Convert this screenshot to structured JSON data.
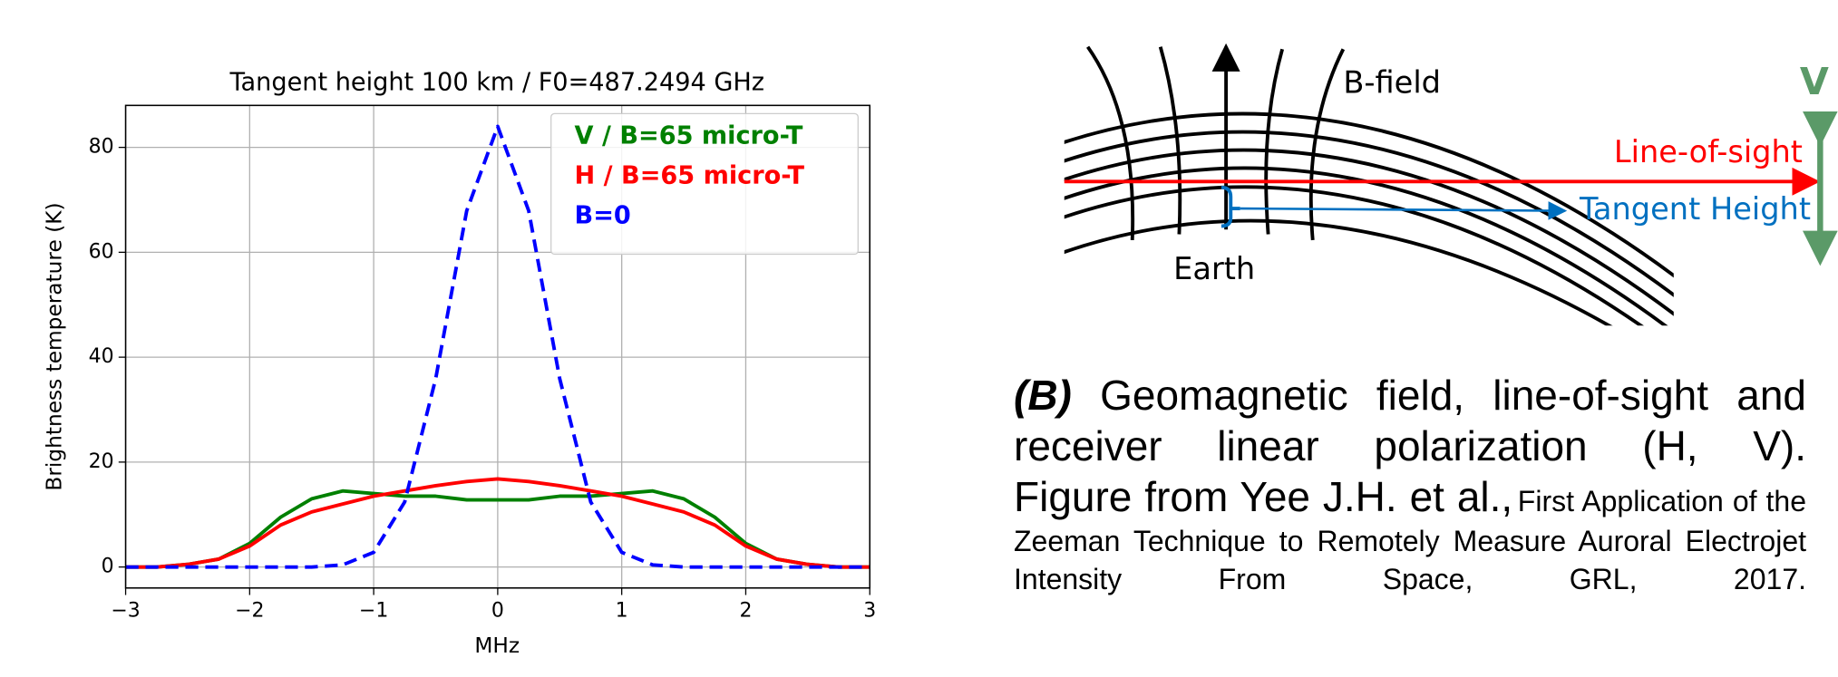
{
  "chart_data": {
    "type": "line",
    "title": "Tangent height 100 km / F0=487.2494 GHz",
    "x_label": "MHz",
    "y_label": "Brightness temperature (K)",
    "x": [
      -3,
      -2.75,
      -2.5,
      -2.25,
      -2,
      -1.75,
      -1.5,
      -1.25,
      -1,
      -0.75,
      -0.5,
      -0.25,
      0,
      0.25,
      0.5,
      0.75,
      1,
      1.25,
      1.5,
      1.75,
      2,
      2.25,
      2.5,
      2.75,
      3
    ],
    "series": [
      {
        "name": "V / B=65 micro-T",
        "color": "#008000",
        "dashed": false,
        "values": [
          0,
          0,
          0.5,
          1.5,
          4.5,
          9.5,
          13,
          14.5,
          14,
          13.5,
          13.5,
          12.8,
          12.8,
          12.8,
          13.5,
          13.5,
          14,
          14.5,
          13,
          9.5,
          4.5,
          1.5,
          0.5,
          0,
          0
        ]
      },
      {
        "name": "H / B=65 micro-T",
        "color": "#ff0000",
        "dashed": false,
        "values": [
          0,
          0,
          0.5,
          1.5,
          4,
          8,
          10.5,
          12,
          13.5,
          14.5,
          15.5,
          16.3,
          16.8,
          16.3,
          15.5,
          14.5,
          13.5,
          12,
          10.5,
          8,
          4,
          1.5,
          0.5,
          0,
          0
        ]
      },
      {
        "name": "B=0",
        "color": "#0000ff",
        "dashed": true,
        "values": [
          0,
          0,
          0,
          0,
          0,
          0,
          0,
          0.4,
          2.8,
          12.4,
          35.9,
          67.9,
          84,
          67.9,
          35.9,
          12.4,
          2.8,
          0.4,
          0,
          0,
          0,
          0,
          0,
          0,
          0
        ]
      }
    ],
    "xlim": [
      -3,
      3
    ],
    "xticks": [
      {
        "value": -3,
        "label": "−3"
      },
      {
        "value": -2,
        "label": "−2"
      },
      {
        "value": -1,
        "label": "−1"
      },
      0,
      1,
      2,
      3
    ],
    "ylim": [
      -4,
      88
    ],
    "yticks": [
      0,
      20,
      40,
      60,
      80
    ],
    "grid": true,
    "legend": "upper right"
  },
  "diagram": {
    "b_field": "B-field",
    "line_of_sight": "Line-of-sight",
    "tangent_height": "Tangent Height",
    "earth": "Earth",
    "v": "V"
  },
  "caption": {
    "label": "(B)",
    "line1": "Geomagnetic field, line-of-sight and receiver linear polarization (H, V).",
    "source": "Figure from Yee J.H. et al.,",
    "reference": "First Application of the Zeeman Technique to Remotely Measure Auroral Electrojet Intensity From Space, GRL, 2017."
  }
}
